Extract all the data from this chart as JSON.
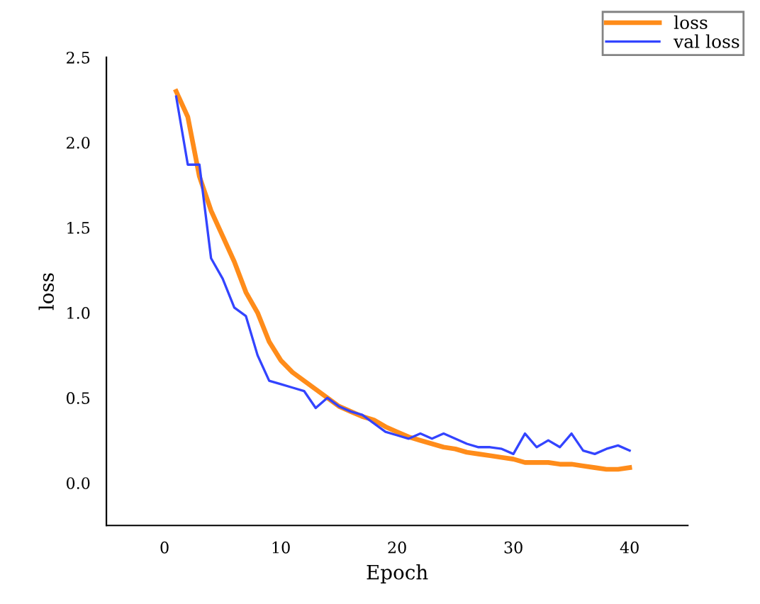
{
  "chart_data": {
    "type": "line",
    "xlabel": "Epoch",
    "ylabel": "loss",
    "x": [
      1,
      2,
      3,
      4,
      5,
      6,
      7,
      8,
      9,
      10,
      11,
      12,
      13,
      14,
      15,
      16,
      17,
      18,
      19,
      20,
      21,
      22,
      23,
      24,
      25,
      26,
      27,
      28,
      29,
      30,
      31,
      32,
      33,
      34,
      35,
      36,
      37,
      38,
      39,
      40
    ],
    "series": [
      {
        "name": "loss",
        "color": "#ff8c1a",
        "values": [
          2.3,
          2.15,
          1.8,
          1.6,
          1.45,
          1.3,
          1.12,
          1.0,
          0.83,
          0.72,
          0.65,
          0.6,
          0.55,
          0.5,
          0.45,
          0.42,
          0.39,
          0.37,
          0.33,
          0.3,
          0.27,
          0.25,
          0.23,
          0.21,
          0.2,
          0.18,
          0.17,
          0.16,
          0.15,
          0.14,
          0.12,
          0.12,
          0.12,
          0.11,
          0.11,
          0.1,
          0.09,
          0.08,
          0.08,
          0.09
        ]
      },
      {
        "name": "val loss",
        "color": "#3344ff",
        "values": [
          2.27,
          1.87,
          1.87,
          1.32,
          1.2,
          1.03,
          0.98,
          0.75,
          0.6,
          0.58,
          0.56,
          0.54,
          0.44,
          0.5,
          0.45,
          0.42,
          0.4,
          0.35,
          0.3,
          0.28,
          0.26,
          0.29,
          0.26,
          0.29,
          0.26,
          0.23,
          0.21,
          0.21,
          0.2,
          0.17,
          0.29,
          0.21,
          0.25,
          0.21,
          0.29,
          0.19,
          0.17,
          0.2,
          0.22,
          0.19
        ]
      }
    ],
    "xlim": [
      -5,
      45
    ],
    "xticks": [
      0,
      10,
      20,
      30,
      40
    ],
    "ylim": [
      -0.25,
      2.5
    ],
    "yticks": [
      {
        "value": 0,
        "label": "0.0"
      },
      {
        "value": 0.5,
        "label": "0.5"
      },
      {
        "value": 1,
        "label": "1.0"
      },
      {
        "value": 1.5,
        "label": "1.5"
      },
      {
        "value": 2,
        "label": "2.0"
      },
      {
        "value": 2.5,
        "label": "2.5"
      }
    ],
    "grid": false,
    "legend": "top right",
    "marker": "none",
    "line_style": "solid"
  }
}
